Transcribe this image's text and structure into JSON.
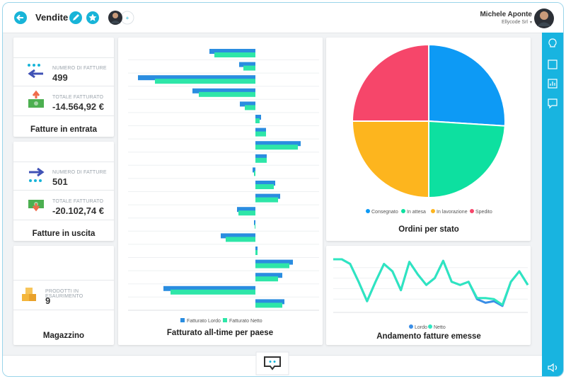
{
  "header": {
    "title": "Vendite",
    "user": {
      "name": "Michele Aponte",
      "company": "Ellycode Srl"
    }
  },
  "cards": [
    {
      "title": "Fatture in entrata",
      "rows": [
        {
          "label": "NUMERO DI FATTURE",
          "value": "499"
        },
        {
          "label": "TOTALE FATTURATO",
          "value": "-14.564,92 €"
        }
      ]
    },
    {
      "title": "Fatture in uscita",
      "rows": [
        {
          "label": "NUMERO DI FATTURE",
          "value": "501"
        },
        {
          "label": "TOTALE FATTURATO",
          "value": "-20.102,74 €"
        }
      ]
    },
    {
      "title": "Magazzino",
      "rows": [
        {
          "label": "PRODOTTI IN ESAURIMENTO",
          "value": "9"
        }
      ]
    }
  ],
  "chart_data": [
    {
      "type": "bar",
      "orientation": "horizontal",
      "title": "Fatturato all-time per paese",
      "categories": [
        null,
        null,
        null,
        null,
        null,
        null,
        null,
        null,
        null,
        null,
        null,
        null,
        null,
        null,
        null,
        null,
        null,
        null,
        null,
        null
      ],
      "series": [
        {
          "name": "Fatturato Lordo",
          "color": "#2a8de0",
          "values": [
            -65,
            -23,
            -166,
            -89,
            -22,
            8,
            15,
            64,
            16,
            -4,
            28,
            35,
            -26,
            -2,
            -49,
            3,
            53,
            38,
            -130,
            41
          ]
        },
        {
          "name": "Fatturato Netto",
          "color": "#2ee6a8",
          "values": [
            -58,
            -17,
            -142,
            -80,
            -15,
            6,
            15,
            60,
            16,
            -2,
            26,
            32,
            -24,
            -1,
            -42,
            3,
            48,
            32,
            -120,
            38
          ]
        }
      ],
      "xlim": [
        -180,
        90
      ]
    },
    {
      "type": "pie",
      "title": "Ordini per stato",
      "categories": [
        "Consegnato",
        "In attesa",
        "In lavorazione",
        "Spedito"
      ],
      "values": [
        26,
        24,
        25,
        25
      ],
      "colors": [
        "#0d9af5",
        "#0de0a0",
        "#fdb51e",
        "#f6466a"
      ]
    },
    {
      "type": "line",
      "title": "Andamento fatture emesse",
      "categories": [
        null,
        null,
        null,
        null,
        null,
        null,
        null,
        null,
        null,
        null,
        null,
        null,
        null,
        null,
        null,
        null,
        null,
        null,
        null,
        null,
        null,
        null,
        null,
        null
      ],
      "series": [
        {
          "name": "Lordo",
          "color": "#3a8ee6",
          "values": [
            96,
            96,
            87,
            53,
            16,
            53,
            87,
            73,
            37,
            91,
            67,
            47,
            60,
            93,
            53,
            47,
            53,
            20,
            13,
            16,
            7,
            53,
            73,
            47
          ]
        },
        {
          "name": "Netto",
          "color": "#2ee6c0",
          "values": [
            96,
            96,
            87,
            53,
            16,
            53,
            87,
            73,
            37,
            91,
            67,
            47,
            60,
            93,
            53,
            47,
            53,
            22,
            22,
            20,
            9,
            53,
            73,
            47
          ]
        }
      ],
      "ylim": [
        0,
        100
      ],
      "yticks": [
        20,
        40,
        60,
        80
      ],
      "grid": true
    }
  ]
}
